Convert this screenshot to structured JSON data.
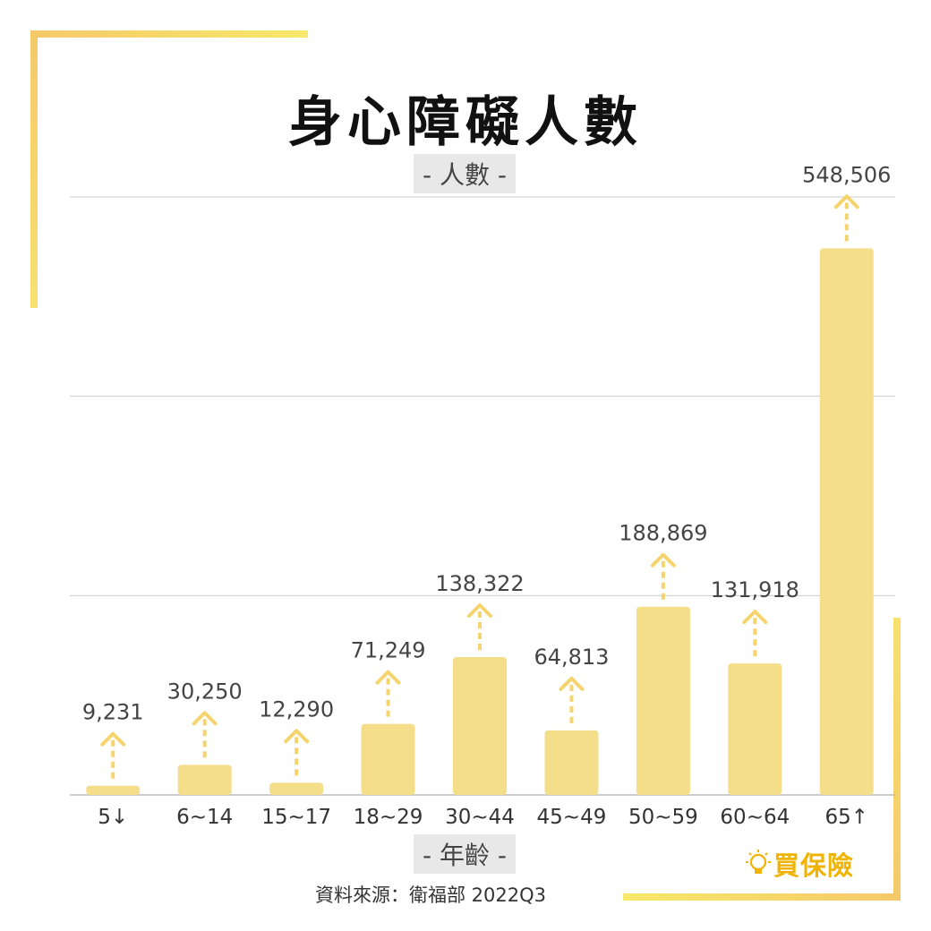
{
  "title": "身心障礙人數",
  "source": "資料來源：衛福部  2022Q3",
  "brand": {
    "name": "買保險",
    "icon": "lightbulb-icon"
  },
  "colors": {
    "bar": "#f5de8a",
    "arrow": "#f5d46e",
    "accent": "#f7d64a",
    "grid": "#cccccc"
  },
  "chart_data": {
    "type": "bar",
    "title": "身心障礙人數",
    "ylabel": "- 人數 -",
    "xlabel": "- 年齡 -",
    "categories": [
      "5↓",
      "6~14",
      "15~17",
      "18~29",
      "30~44",
      "45~49",
      "50~59",
      "60~64",
      "65↑"
    ],
    "values": [
      9231,
      30250,
      12290,
      71249,
      138322,
      64813,
      188869,
      131918,
      548506
    ],
    "value_labels": [
      "9,231",
      "30,250",
      "12,290",
      "71,249",
      "138,322",
      "64,813",
      "188,869",
      "131,918",
      "548,506"
    ],
    "ylim": [
      0,
      600000
    ],
    "grid": true,
    "legend": "none"
  }
}
